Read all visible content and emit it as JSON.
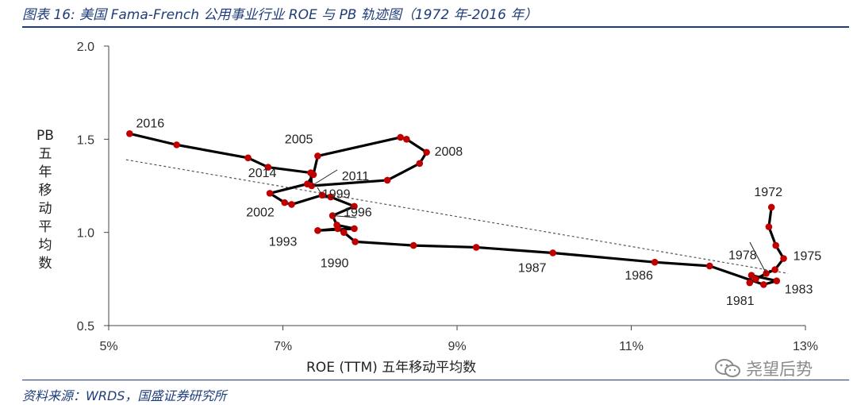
{
  "figure": {
    "title": "图表 16:  美国 Fama-French 公用事业行业 ROE 与 PB 轨迹图（1972 年-2016 年）",
    "source": "资料来源：WRDS，国盛证券研究所",
    "watermark": "尧望后势"
  },
  "chart_data": {
    "type": "scatter",
    "xlabel": "ROE (TTM) 五年移动平均数",
    "ylabel": "PB五年移动平均数",
    "xlim": [
      0.05,
      0.13
    ],
    "ylim": [
      0.5,
      2.0
    ],
    "xticks": [
      0.05,
      0.07,
      0.09,
      0.11,
      0.13
    ],
    "xtick_labels": [
      "5%",
      "7%",
      "9%",
      "11%",
      "13%"
    ],
    "yticks": [
      0.5,
      1.0,
      1.5,
      2.0
    ],
    "ytick_labels": [
      "0.5",
      "1.0",
      "1.5",
      "2.0"
    ],
    "grid": false,
    "series": [
      {
        "line_color": "#000000",
        "marker_color": "#c00000",
        "points": [
          {
            "x": 0.1261,
            "y": 1.135,
            "label": "1972"
          },
          {
            "x": 0.1258,
            "y": 1.03
          },
          {
            "x": 0.1266,
            "y": 0.93
          },
          {
            "x": 0.1275,
            "y": 0.86,
            "label": "1975"
          },
          {
            "x": 0.1265,
            "y": 0.8
          },
          {
            "x": 0.1255,
            "y": 0.78,
            "label": "1978"
          },
          {
            "x": 0.1243,
            "y": 0.75
          },
          {
            "x": 0.1236,
            "y": 0.73,
            "label": "1981"
          },
          {
            "x": 0.1238,
            "y": 0.77
          },
          {
            "x": 0.1267,
            "y": 0.74,
            "label": "1983"
          },
          {
            "x": 0.1252,
            "y": 0.72
          },
          {
            "x": 0.119,
            "y": 0.82
          },
          {
            "x": 0.1127,
            "y": 0.84,
            "label": "1986"
          },
          {
            "x": 0.101,
            "y": 0.89,
            "label": "1987"
          },
          {
            "x": 0.0922,
            "y": 0.92
          },
          {
            "x": 0.085,
            "y": 0.93
          },
          {
            "x": 0.0783,
            "y": 0.95,
            "label": "1990"
          },
          {
            "x": 0.077,
            "y": 1.0
          },
          {
            "x": 0.0763,
            "y": 1.02
          },
          {
            "x": 0.074,
            "y": 1.01,
            "label": "1993"
          },
          {
            "x": 0.0782,
            "y": 1.02
          },
          {
            "x": 0.0762,
            "y": 1.04
          },
          {
            "x": 0.0757,
            "y": 1.09,
            "label": "1996"
          },
          {
            "x": 0.0782,
            "y": 1.14
          },
          {
            "x": 0.0755,
            "y": 1.19
          },
          {
            "x": 0.0745,
            "y": 1.2,
            "label": "1999"
          },
          {
            "x": 0.071,
            "y": 1.15
          },
          {
            "x": 0.0702,
            "y": 1.16
          },
          {
            "x": 0.0685,
            "y": 1.21,
            "label": "2002"
          },
          {
            "x": 0.0728,
            "y": 1.26
          },
          {
            "x": 0.0735,
            "y": 1.31
          },
          {
            "x": 0.074,
            "y": 1.41,
            "label": "2005"
          },
          {
            "x": 0.0835,
            "y": 1.51
          },
          {
            "x": 0.0842,
            "y": 1.5
          },
          {
            "x": 0.0865,
            "y": 1.43,
            "label": "2008"
          },
          {
            "x": 0.0857,
            "y": 1.37
          },
          {
            "x": 0.082,
            "y": 1.28
          },
          {
            "x": 0.0733,
            "y": 1.25,
            "label": "2011"
          },
          {
            "x": 0.0732,
            "y": 1.32
          },
          {
            "x": 0.0683,
            "y": 1.35
          },
          {
            "x": 0.066,
            "y": 1.4,
            "label": "2014"
          },
          {
            "x": 0.0578,
            "y": 1.47
          },
          {
            "x": 0.0524,
            "y": 1.53,
            "label": "2016"
          }
        ]
      }
    ],
    "trendline": {
      "style": "dotted",
      "color": "#555555",
      "x": [
        0.052,
        0.128
      ],
      "y": [
        1.39,
        0.78
      ]
    }
  }
}
